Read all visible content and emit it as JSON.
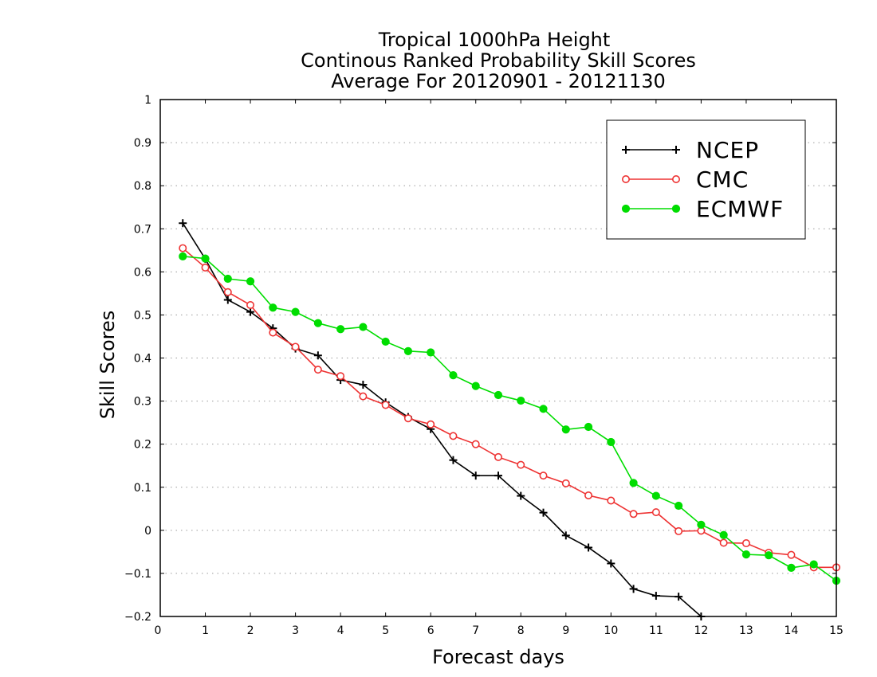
{
  "chart_data": {
    "type": "line",
    "title": [
      "Tropical 1000hPa Height",
      "Continous Ranked Probability Skill Scores",
      "Average For 20120901 - 20121130"
    ],
    "xlabel": "Forecast days",
    "ylabel": "Skill Scores",
    "xlim": [
      0,
      15
    ],
    "ylim": [
      -0.2,
      1
    ],
    "xticks": [
      "0",
      "1",
      "2",
      "3",
      "4",
      "5",
      "6",
      "7",
      "8",
      "9",
      "10",
      "11",
      "12",
      "13",
      "14",
      "15"
    ],
    "yticks": [
      "−0.2",
      "−0.1",
      "0",
      "0.1",
      "0.2",
      "0.3",
      "0.4",
      "0.5",
      "0.6",
      "0.7",
      "0.8",
      "0.9",
      "1"
    ],
    "grid": "horizontal dotted",
    "legend_position": "top-right",
    "series": [
      {
        "name": "NCEP",
        "color": "#000000",
        "marker": "plus",
        "points": [
          [
            0.5,
            0.713
          ],
          [
            1.0,
            0.63
          ],
          [
            1.5,
            0.535
          ],
          [
            2.0,
            0.507
          ],
          [
            2.5,
            0.469
          ],
          [
            3.0,
            0.422
          ],
          [
            3.5,
            0.406
          ],
          [
            4.0,
            0.349
          ],
          [
            4.5,
            0.338
          ],
          [
            5.0,
            0.297
          ],
          [
            5.5,
            0.263
          ],
          [
            6.0,
            0.235
          ],
          [
            6.5,
            0.163
          ],
          [
            7.0,
            0.127
          ],
          [
            7.5,
            0.127
          ],
          [
            8.0,
            0.08
          ],
          [
            8.5,
            0.041
          ],
          [
            9.0,
            -0.012
          ],
          [
            9.5,
            -0.04
          ],
          [
            10.0,
            -0.077
          ],
          [
            10.5,
            -0.136
          ],
          [
            11.0,
            -0.152
          ],
          [
            11.5,
            -0.154
          ],
          [
            12.0,
            -0.2
          ]
        ]
      },
      {
        "name": "CMC",
        "color": "#ee3333",
        "marker": "open-circle",
        "points": [
          [
            0.5,
            0.655
          ],
          [
            1.0,
            0.61
          ],
          [
            1.5,
            0.553
          ],
          [
            2.0,
            0.523
          ],
          [
            2.5,
            0.459
          ],
          [
            3.0,
            0.426
          ],
          [
            3.5,
            0.373
          ],
          [
            4.0,
            0.358
          ],
          [
            4.5,
            0.311
          ],
          [
            5.0,
            0.291
          ],
          [
            5.5,
            0.26
          ],
          [
            6.0,
            0.246
          ],
          [
            6.5,
            0.219
          ],
          [
            7.0,
            0.2
          ],
          [
            7.5,
            0.17
          ],
          [
            8.0,
            0.152
          ],
          [
            8.5,
            0.127
          ],
          [
            9.0,
            0.109
          ],
          [
            9.5,
            0.081
          ],
          [
            10.0,
            0.069
          ],
          [
            10.5,
            0.038
          ],
          [
            11.0,
            0.042
          ],
          [
            11.5,
            -0.002
          ],
          [
            12.0,
            -0.001
          ],
          [
            12.5,
            -0.029
          ],
          [
            13.0,
            -0.03
          ],
          [
            13.5,
            -0.052
          ],
          [
            14.0,
            -0.057
          ],
          [
            14.5,
            -0.086
          ],
          [
            15.0,
            -0.086
          ]
        ]
      },
      {
        "name": "ECMWF",
        "color": "#00dd00",
        "marker": "filled-circle",
        "points": [
          [
            0.5,
            0.636
          ],
          [
            1.0,
            0.631
          ],
          [
            1.5,
            0.584
          ],
          [
            2.0,
            0.578
          ],
          [
            2.5,
            0.517
          ],
          [
            3.0,
            0.507
          ],
          [
            3.5,
            0.481
          ],
          [
            4.0,
            0.467
          ],
          [
            4.5,
            0.472
          ],
          [
            5.0,
            0.438
          ],
          [
            5.5,
            0.416
          ],
          [
            6.0,
            0.413
          ],
          [
            6.5,
            0.36
          ],
          [
            7.0,
            0.335
          ],
          [
            7.5,
            0.314
          ],
          [
            8.0,
            0.301
          ],
          [
            8.5,
            0.282
          ],
          [
            9.0,
            0.234
          ],
          [
            9.5,
            0.24
          ],
          [
            10.0,
            0.205
          ],
          [
            10.5,
            0.11
          ],
          [
            11.0,
            0.08
          ],
          [
            11.5,
            0.057
          ],
          [
            12.0,
            0.013
          ],
          [
            12.5,
            -0.011
          ],
          [
            13.0,
            -0.056
          ],
          [
            13.5,
            -0.058
          ],
          [
            14.0,
            -0.087
          ],
          [
            14.5,
            -0.079
          ],
          [
            15.0,
            -0.117
          ]
        ]
      }
    ]
  }
}
